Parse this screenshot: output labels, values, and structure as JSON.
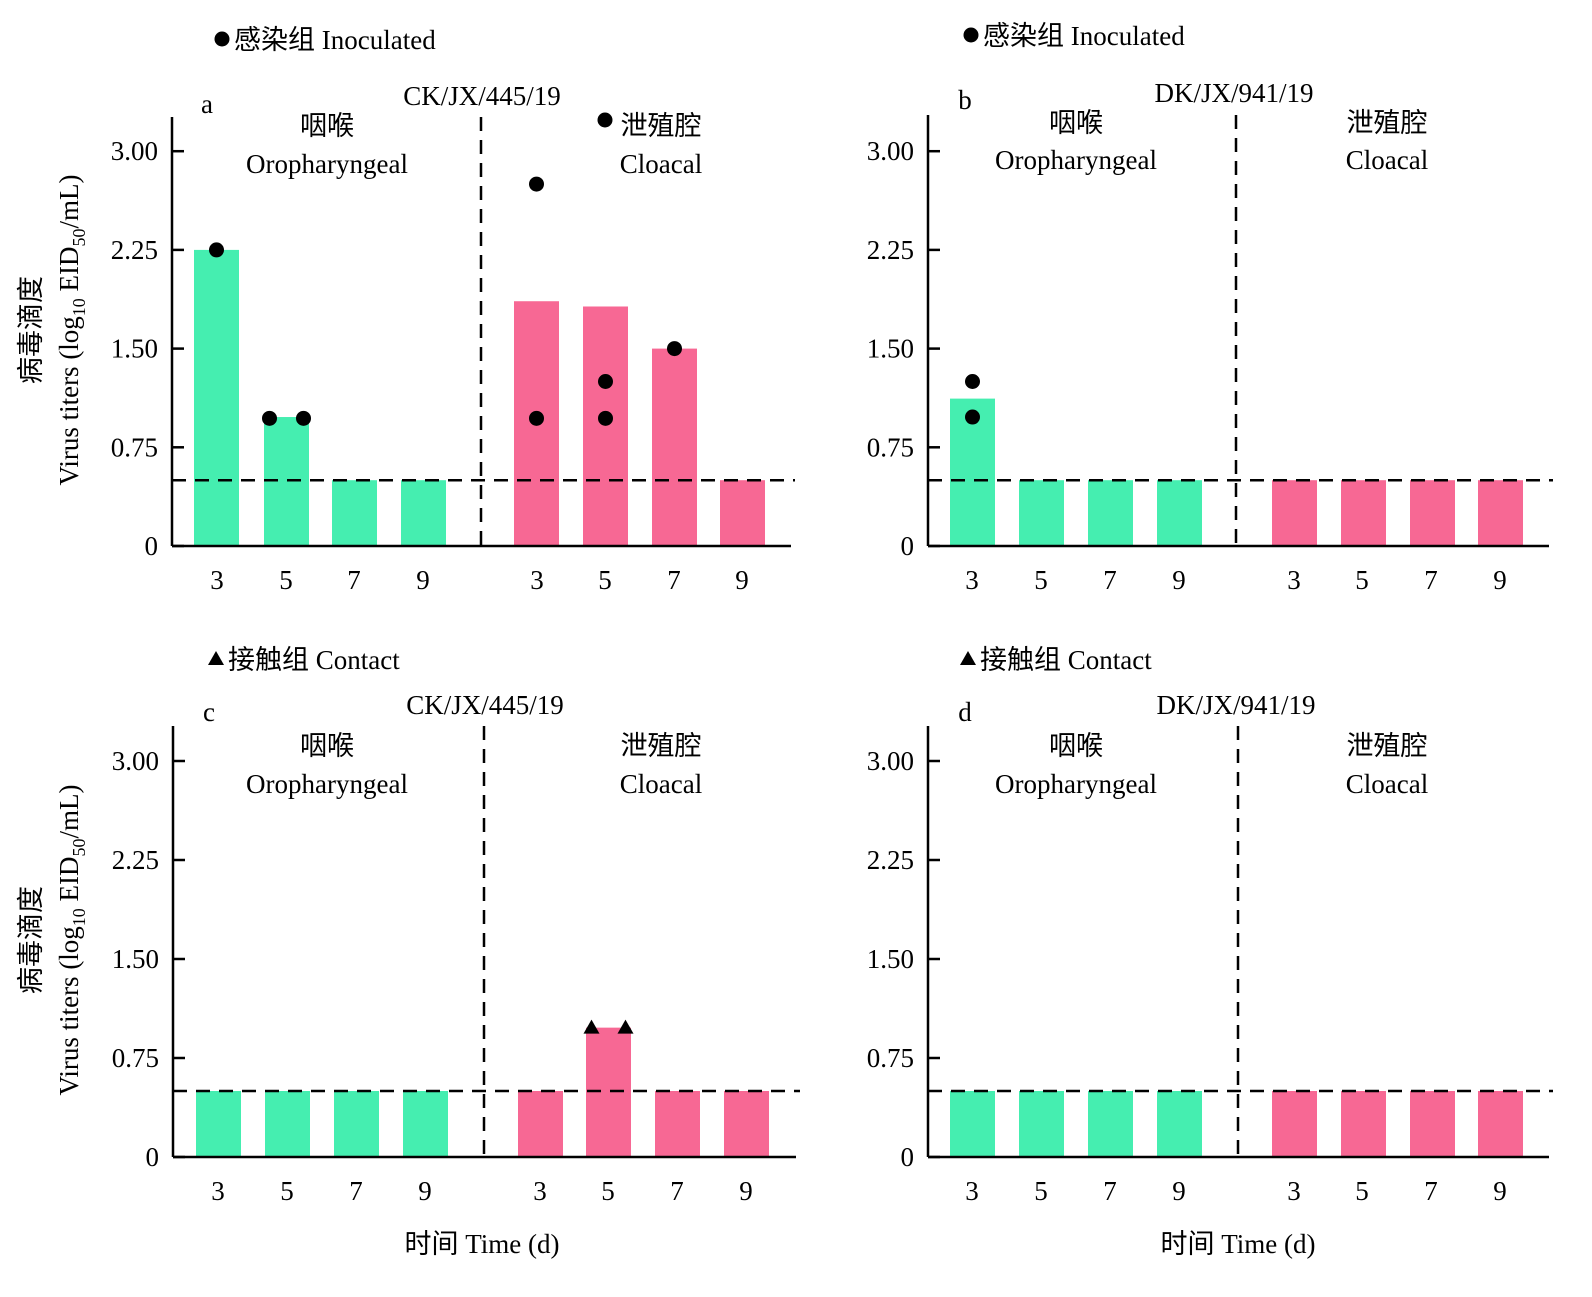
{
  "figure": {
    "xlabel": "时间 Time (d)",
    "ylabel_cn": "病毒滴度",
    "ylabel_en_prefix": "Virus titers (log",
    "ylabel_sub1": "10",
    "ylabel_mid": " EID",
    "ylabel_sub2": "50",
    "ylabel_suffix": "/mL)"
  },
  "colors": {
    "oropharyngeal": "#45EEB0",
    "cloacal": "#F76894",
    "marker": "#000000"
  },
  "chart_data": [
    {
      "panel": "a",
      "title": "CK/JX/445/19",
      "legend": {
        "marker": "circle",
        "label": "感染组 Inoculated"
      },
      "type": "bar",
      "ylim": [
        0,
        3.3
      ],
      "yticks": [
        "0",
        "0.75",
        "1.50",
        "2.25",
        "3.00"
      ],
      "ytick_values": [
        0,
        0.75,
        1.5,
        2.25,
        3.0
      ],
      "detection_limit": 0.5,
      "groups": [
        {
          "label_cn": "咽喉",
          "label_en": "Oropharyngeal",
          "categories": [
            "3",
            "5",
            "7",
            "9"
          ],
          "values": [
            2.25,
            0.98,
            0.5,
            0.5
          ],
          "points": [
            {
              "day": "3",
              "y": [
                2.25
              ]
            },
            {
              "day": "5",
              "y": [
                0.97,
                0.97
              ]
            }
          ]
        },
        {
          "label_cn": "泄殖腔",
          "label_en": "Cloacal",
          "categories": [
            "3",
            "5",
            "7",
            "9"
          ],
          "values": [
            1.86,
            1.82,
            1.5,
            0.5
          ],
          "points": [
            {
              "day": "3",
              "y": [
                2.75,
                0.97
              ]
            },
            {
              "day": "5",
              "y": [
                1.25,
                0.97
              ]
            },
            {
              "day": "7",
              "y": [
                1.5
              ]
            }
          ],
          "label_marker": "circle"
        }
      ]
    },
    {
      "panel": "b",
      "title": "DK/JX/941/19",
      "legend": {
        "marker": "circle",
        "label": "感染组 Inoculated"
      },
      "type": "bar",
      "ylim": [
        0,
        3.3
      ],
      "yticks": [
        "0",
        "0.75",
        "1.50",
        "2.25",
        "3.00"
      ],
      "ytick_values": [
        0,
        0.75,
        1.5,
        2.25,
        3.0
      ],
      "detection_limit": 0.5,
      "groups": [
        {
          "label_cn": "咽喉",
          "label_en": "Oropharyngeal",
          "categories": [
            "3",
            "5",
            "7",
            "9"
          ],
          "values": [
            1.12,
            0.5,
            0.5,
            0.5
          ],
          "points": [
            {
              "day": "3",
              "y": [
                1.25,
                0.98
              ]
            }
          ]
        },
        {
          "label_cn": "泄殖腔",
          "label_en": "Cloacal",
          "categories": [
            "3",
            "5",
            "7",
            "9"
          ],
          "values": [
            0.5,
            0.5,
            0.5,
            0.5
          ],
          "points": []
        }
      ]
    },
    {
      "panel": "c",
      "title": "CK/JX/445/19",
      "legend": {
        "marker": "triangle",
        "label": "接触组 Contact"
      },
      "type": "bar",
      "ylim": [
        0,
        3.3
      ],
      "yticks": [
        "0",
        "0.75",
        "1.50",
        "2.25",
        "3.00"
      ],
      "ytick_values": [
        0,
        0.75,
        1.5,
        2.25,
        3.0
      ],
      "detection_limit": 0.5,
      "groups": [
        {
          "label_cn": "咽喉",
          "label_en": "Oropharyngeal",
          "categories": [
            "3",
            "5",
            "7",
            "9"
          ],
          "values": [
            0.5,
            0.5,
            0.5,
            0.5
          ],
          "points": []
        },
        {
          "label_cn": "泄殖腔",
          "label_en": "Cloacal",
          "categories": [
            "3",
            "5",
            "7",
            "9"
          ],
          "values": [
            0.5,
            0.98,
            0.5,
            0.5
          ],
          "points": [
            {
              "day": "5",
              "y": [
                0.98,
                0.98
              ]
            }
          ]
        }
      ]
    },
    {
      "panel": "d",
      "title": "DK/JX/941/19",
      "legend": {
        "marker": "triangle",
        "label": "接触组 Contact"
      },
      "type": "bar",
      "ylim": [
        0,
        3.3
      ],
      "yticks": [
        "0",
        "0.75",
        "1.50",
        "2.25",
        "3.00"
      ],
      "ytick_values": [
        0,
        0.75,
        1.5,
        2.25,
        3.0
      ],
      "detection_limit": 0.5,
      "groups": [
        {
          "label_cn": "咽喉",
          "label_en": "Oropharyngeal",
          "categories": [
            "3",
            "5",
            "7",
            "9"
          ],
          "values": [
            0.5,
            0.5,
            0.5,
            0.5
          ],
          "points": []
        },
        {
          "label_cn": "泄殖腔",
          "label_en": "Cloacal",
          "categories": [
            "3",
            "5",
            "7",
            "9"
          ],
          "values": [
            0.5,
            0.5,
            0.5,
            0.5
          ],
          "points": []
        }
      ]
    }
  ]
}
